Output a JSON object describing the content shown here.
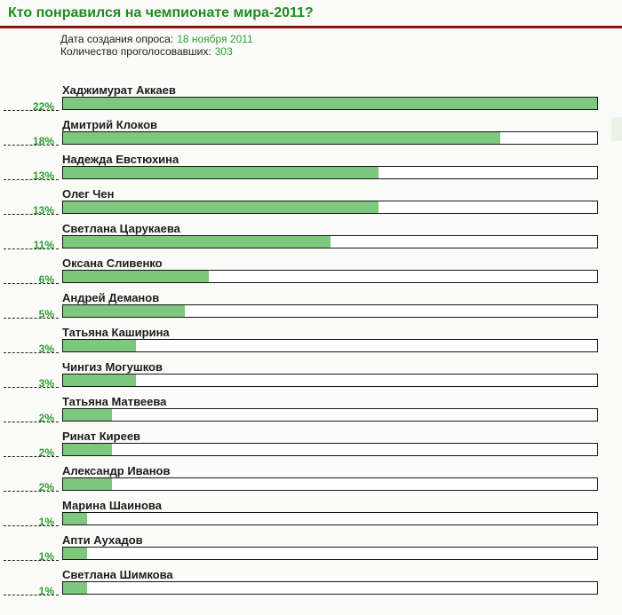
{
  "header": {
    "title": "Кто понравился на чемпионате мира-2011?"
  },
  "meta": {
    "date_label": "Дата создания опроса:",
    "date_value": "18 ноября 2011",
    "votes_label": "Количество проголосовавших:",
    "votes_value": "303"
  },
  "colors": {
    "title_green": "#1f8b1f",
    "value_green": "#2e9e2e",
    "bar_fill": "#7dc87d",
    "bar_border": "#161616",
    "rule_red": "#8b1111",
    "text_dark": "#1c1c1c",
    "background": "#fbfcf9"
  },
  "chart_data": {
    "type": "bar",
    "orientation": "horizontal",
    "title": "Кто понравился на чемпионате мира-2011?",
    "categories": [
      "Хаджимурат Аккаев",
      "Дмитрий Клоков",
      "Надежда Евстюхина",
      "Олег Чен",
      "Светлана Царукаева",
      "Оксана Сливенко",
      "Андрей Деманов",
      "Татьяна Каширина",
      "Чингиз Могушков",
      "Татьяна Матвеева",
      "Ринат Киреев",
      "Александр Иванов",
      "Марина Шаинова",
      "Апти Аухадов",
      "Светлана Шимкова"
    ],
    "values": [
      22,
      18,
      13,
      13,
      11,
      6,
      5,
      3,
      3,
      2,
      2,
      2,
      1,
      1,
      1
    ],
    "value_suffix": "%",
    "scale_max": 22,
    "xlabel": "",
    "ylabel": "",
    "legend": false,
    "grid": false
  }
}
